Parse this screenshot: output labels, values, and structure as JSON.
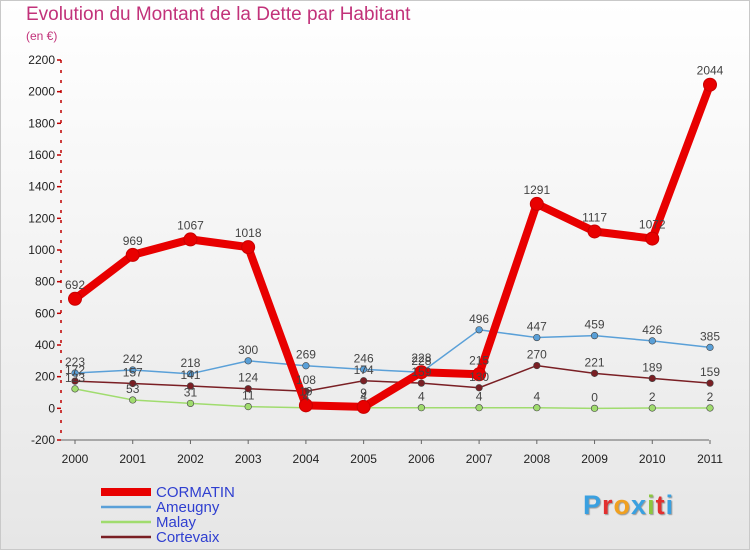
{
  "header": {
    "title": "Evolution du Montant de la Dette par Habitant",
    "subtitle": "(en €)"
  },
  "logo": {
    "text": "Proxiti",
    "letter_colors": [
      "#3aa0e0",
      "#e23030",
      "#f0a020",
      "#3aa0e0",
      "#8cc63f",
      "#e23030",
      "#3aa0e0"
    ]
  },
  "chart_data": {
    "type": "line",
    "x": [
      "2000",
      "2001",
      "2002",
      "2003",
      "2004",
      "2005",
      "2006",
      "2007",
      "2008",
      "2009",
      "2010",
      "2011"
    ],
    "ylim": [
      -200,
      2200
    ],
    "yticks": [
      -200,
      0,
      200,
      400,
      600,
      800,
      1000,
      1200,
      1400,
      1600,
      1800,
      2000,
      2200
    ],
    "grid": false,
    "legend_position": "bottom-left",
    "series": [
      {
        "name": "Malay",
        "color": "#a0dc6e",
        "values": [
          123,
          53,
          31,
          11,
          4,
          4,
          4,
          4,
          4,
          0,
          2,
          2
        ]
      },
      {
        "name": "Cortevaix",
        "color": "#7a1f24",
        "values": [
          172,
          157,
          141,
          124,
          108,
          174,
          159,
          130,
          270,
          221,
          189,
          159
        ]
      },
      {
        "name": "Ameugny",
        "color": "#5aa0d8",
        "values": [
          223,
          242,
          218,
          300,
          269,
          246,
          228,
          496,
          447,
          459,
          426,
          385
        ]
      },
      {
        "name": "CORMATIN",
        "color": "#e80000",
        "values": [
          692,
          969,
          1067,
          1018,
          19,
          9,
          228,
          215,
          1291,
          1117,
          1072,
          2044
        ]
      }
    ],
    "data_labels": [
      {
        "series": "CORMATIN",
        "labels": [
          "692",
          "969",
          "1067",
          "1018",
          "19",
          "9",
          "228",
          "215",
          "1291",
          "1117",
          "1072",
          "2044"
        ]
      },
      {
        "series": "Ameugny",
        "labels": [
          "223",
          "242",
          "218",
          "300",
          "269",
          "246",
          "228",
          "496",
          "447",
          "459",
          "426",
          "385"
        ]
      },
      {
        "series": "Cortevaix",
        "labels": [
          "172",
          "157",
          "141",
          "124",
          "108",
          "174",
          "159",
          "130",
          "270",
          "221",
          "189",
          "159"
        ]
      },
      {
        "series": "Malay",
        "labels": [
          "123",
          "53",
          "31",
          "11",
          "4",
          "4",
          "4",
          "4",
          "4",
          "0",
          "2",
          "2"
        ]
      }
    ],
    "legend": [
      "CORMATIN",
      "Ameugny",
      "Malay",
      "Cortevaix"
    ]
  }
}
